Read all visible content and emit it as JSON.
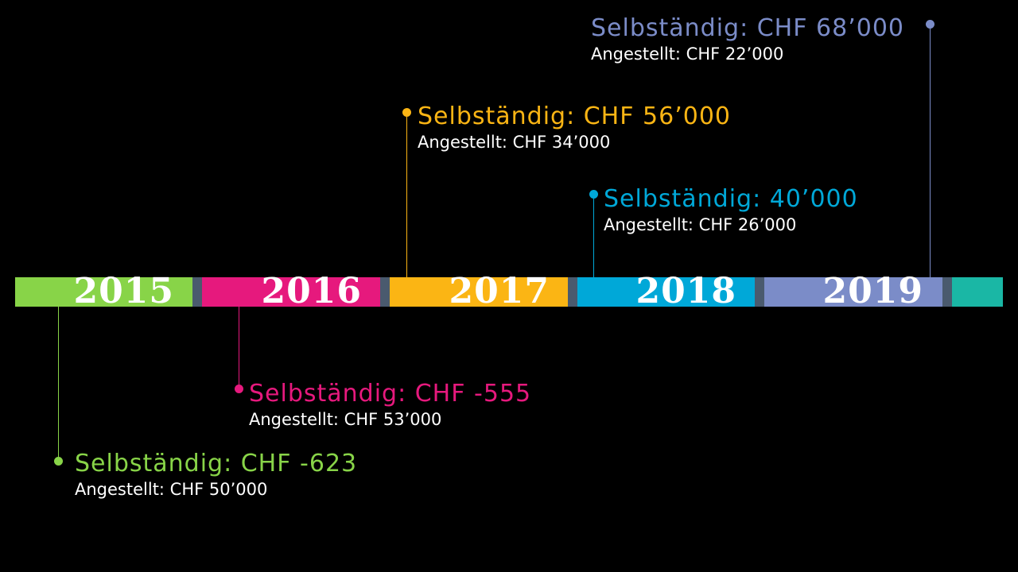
{
  "colors": {
    "y2015": "#88d448",
    "y2016": "#e6197d",
    "y2017": "#fbb514",
    "y2018": "#00a8d8",
    "y2019": "#7b8cc8",
    "tail": "#1ab7a5",
    "gap": "#4a5a6e"
  },
  "years": [
    {
      "label": "2015"
    },
    {
      "label": "2016"
    },
    {
      "label": "2017"
    },
    {
      "label": "2018"
    },
    {
      "label": "2019"
    }
  ],
  "annotations": {
    "y2015": {
      "self": "Selbständig: CHF -623",
      "employed": "Angestellt: CHF 50’000"
    },
    "y2016": {
      "self": "Selbständig: CHF -555",
      "employed": "Angestellt: CHF 53’000"
    },
    "y2017": {
      "self": "Selbständig: CHF 56’000",
      "employed": "Angestellt: CHF 34’000"
    },
    "y2018": {
      "self": "Selbständig: 40’000",
      "employed": "Angestellt: CHF 26’000"
    },
    "y2019": {
      "self": "Selbständig: CHF 68’000",
      "employed": "Angestellt: CHF 22’000"
    }
  }
}
